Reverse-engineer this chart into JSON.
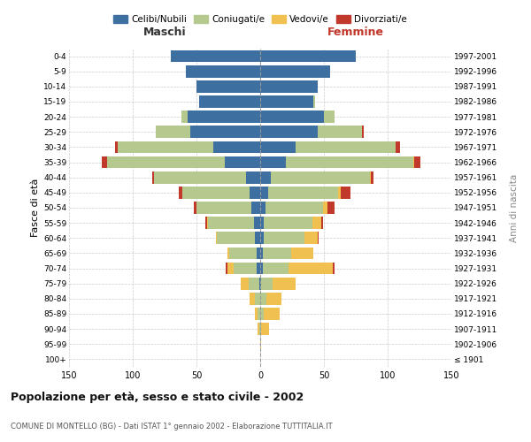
{
  "age_groups": [
    "100+",
    "95-99",
    "90-94",
    "85-89",
    "80-84",
    "75-79",
    "70-74",
    "65-69",
    "60-64",
    "55-59",
    "50-54",
    "45-49",
    "40-44",
    "35-39",
    "30-34",
    "25-29",
    "20-24",
    "15-19",
    "10-14",
    "5-9",
    "0-4"
  ],
  "birth_years": [
    "≤ 1901",
    "1902-1906",
    "1907-1911",
    "1912-1916",
    "1917-1921",
    "1922-1926",
    "1927-1931",
    "1932-1936",
    "1937-1941",
    "1942-1946",
    "1947-1951",
    "1952-1956",
    "1957-1961",
    "1962-1966",
    "1967-1971",
    "1972-1976",
    "1977-1981",
    "1982-1986",
    "1987-1991",
    "1992-1996",
    "1997-2001"
  ],
  "male": {
    "celibi": [
      0,
      0,
      0,
      0,
      0,
      1,
      3,
      3,
      4,
      5,
      7,
      8,
      11,
      28,
      37,
      55,
      57,
      48,
      50,
      58,
      70
    ],
    "coniugati": [
      0,
      0,
      1,
      2,
      4,
      8,
      18,
      21,
      30,
      36,
      43,
      53,
      72,
      92,
      75,
      27,
      5,
      0,
      0,
      0,
      0
    ],
    "vedovi": [
      0,
      0,
      1,
      2,
      4,
      6,
      5,
      2,
      1,
      1,
      0,
      0,
      0,
      0,
      0,
      0,
      0,
      0,
      0,
      0,
      0
    ],
    "divorziati": [
      0,
      0,
      0,
      0,
      0,
      0,
      1,
      0,
      0,
      1,
      2,
      3,
      2,
      4,
      2,
      0,
      0,
      0,
      0,
      0,
      0
    ]
  },
  "female": {
    "nubili": [
      0,
      0,
      0,
      0,
      0,
      1,
      2,
      2,
      3,
      3,
      4,
      6,
      8,
      20,
      28,
      45,
      50,
      42,
      45,
      55,
      75
    ],
    "coniugate": [
      0,
      0,
      1,
      3,
      5,
      9,
      20,
      22,
      32,
      38,
      45,
      55,
      78,
      100,
      78,
      35,
      8,
      1,
      0,
      0,
      0
    ],
    "vedove": [
      0,
      1,
      6,
      12,
      12,
      18,
      35,
      18,
      10,
      7,
      4,
      2,
      1,
      1,
      0,
      0,
      0,
      0,
      0,
      0,
      0
    ],
    "divorziate": [
      0,
      0,
      0,
      0,
      0,
      0,
      1,
      0,
      1,
      1,
      5,
      8,
      2,
      5,
      4,
      1,
      0,
      0,
      0,
      0,
      0
    ]
  },
  "colors": {
    "celibi": "#3d6fa0",
    "coniugati": "#b5c98e",
    "vedovi": "#f0c050",
    "divorziati": "#c0392b"
  },
  "title": "Popolazione per età, sesso e stato civile - 2002",
  "subtitle": "COMUNE DI MONTELLO (BG) - Dati ISTAT 1° gennaio 2002 - Elaborazione TUTTITALIA.IT",
  "label_maschi": "Maschi",
  "label_femmine": "Femmine",
  "ylabel_left": "Fasce di età",
  "ylabel_right": "Anni di nascita",
  "xlim": 150,
  "xticks": [
    150,
    100,
    50,
    0,
    50,
    100,
    150
  ],
  "background_color": "#ffffff",
  "grid_color": "#cccccc",
  "legend_labels": [
    "Celibi/Nubili",
    "Coniugati/e",
    "Vedovi/e",
    "Divorziati/e"
  ]
}
